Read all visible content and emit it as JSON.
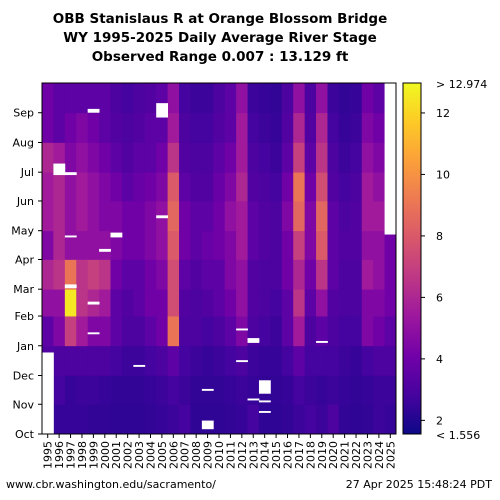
{
  "title_lines": [
    "OBB Stanislaus R at Orange Blossom Bridge",
    "WY 1995-2025 Daily Average River Stage",
    "Observed Range 0.007 : 13.129 ft"
  ],
  "footer": {
    "source": "www.cbr.washington.edu/sacramento/",
    "timestamp": "27 Apr 2025 15:48:24 PDT"
  },
  "colors": {
    "palette": [
      "#0d0887",
      "#46039f",
      "#7201a8",
      "#9c179e",
      "#bd3786",
      "#d8576b",
      "#ed7953",
      "#fb9f3a",
      "#fdca26",
      "#f0f921"
    ],
    "missing": "#ffffff"
  },
  "chart_data": {
    "type": "heatmap",
    "x": [
      "1995",
      "1996",
      "1997",
      "1998",
      "1999",
      "2000",
      "2001",
      "2002",
      "2003",
      "2004",
      "2005",
      "2006",
      "2007",
      "2008",
      "2009",
      "2010",
      "2011",
      "2012",
      "2013",
      "2014",
      "2015",
      "2016",
      "2017",
      "2018",
      "2019",
      "2020",
      "2021",
      "2022",
      "2023",
      "2024",
      "2025"
    ],
    "y": [
      "Oct",
      "Nov",
      "Dec",
      "Jan",
      "Feb",
      "Mar",
      "Apr",
      "May",
      "Jun",
      "Jul",
      "Aug",
      "Sep"
    ],
    "colorbar": {
      "ticks": [
        2,
        4,
        6,
        8,
        10,
        12
      ],
      "top_label": "> 12.974",
      "bottom_label": "< 1.556",
      "range": [
        1.556,
        12.974
      ]
    },
    "values": [
      [
        2.8,
        3.0,
        3.2,
        3.5,
        5.0,
        6.0,
        4.5,
        5.5,
        5.5,
        6.0,
        4.0,
        4.0
      ],
      [
        2.5,
        2.8,
        3.0,
        4.5,
        5.0,
        6.5,
        6.0,
        6.0,
        6.0,
        5.5,
        3.5,
        3.5
      ],
      [
        2.5,
        2.5,
        3.0,
        7.0,
        12.5,
        9.0,
        5.0,
        5.0,
        5.0,
        4.5,
        4.0,
        3.5
      ],
      [
        2.5,
        2.6,
        3.0,
        5.5,
        6.5,
        6.5,
        5.0,
        5.5,
        5.5,
        5.0,
        4.5,
        3.5
      ],
      [
        2.4,
        2.6,
        3.0,
        4.5,
        6.0,
        7.0,
        5.0,
        5.0,
        5.0,
        4.5,
        4.0,
        3.5
      ],
      [
        2.4,
        2.5,
        3.0,
        4.5,
        5.5,
        6.5,
        5.0,
        4.5,
        4.5,
        4.0,
        3.5,
        3.5
      ],
      [
        2.3,
        2.4,
        2.8,
        3.5,
        3.5,
        4.0,
        4.5,
        4.5,
        4.0,
        3.5,
        3.2,
        3.0
      ],
      [
        2.3,
        2.4,
        2.6,
        3.0,
        3.2,
        3.5,
        4.0,
        4.0,
        3.5,
        3.2,
        3.0,
        2.8
      ],
      [
        2.3,
        2.4,
        2.6,
        3.0,
        3.5,
        3.5,
        4.0,
        4.0,
        3.8,
        3.5,
        3.2,
        3.0
      ],
      [
        2.4,
        2.5,
        2.8,
        3.5,
        4.0,
        4.0,
        4.5,
        4.5,
        4.0,
        3.5,
        3.5,
        3.2
      ],
      [
        2.5,
        2.6,
        3.0,
        4.0,
        4.0,
        4.5,
        5.0,
        5.0,
        4.5,
        4.0,
        3.5,
        3.5
      ],
      [
        2.6,
        2.8,
        3.5,
        9.0,
        7.5,
        7.5,
        8.0,
        8.5,
        8.0,
        6.5,
        5.5,
        5.0
      ],
      [
        2.8,
        2.6,
        2.8,
        3.0,
        3.2,
        3.5,
        4.0,
        4.0,
        3.5,
        3.2,
        3.0,
        2.8
      ],
      [
        2.3,
        2.4,
        2.6,
        3.0,
        3.0,
        3.2,
        3.5,
        3.5,
        3.2,
        3.0,
        2.8,
        2.6
      ],
      [
        2.3,
        2.4,
        2.5,
        2.8,
        3.2,
        3.5,
        3.8,
        3.5,
        3.2,
        3.0,
        2.8,
        2.6
      ],
      [
        2.3,
        2.4,
        2.6,
        3.0,
        3.5,
        3.5,
        4.0,
        4.0,
        3.8,
        3.5,
        3.2,
        3.0
      ],
      [
        2.4,
        2.5,
        2.8,
        3.5,
        4.0,
        4.5,
        4.5,
        5.0,
        4.5,
        4.0,
        3.5,
        3.5
      ],
      [
        2.5,
        2.6,
        3.0,
        4.5,
        5.0,
        5.0,
        5.5,
        5.5,
        6.0,
        5.5,
        5.5,
        5.0
      ],
      [
        2.8,
        2.5,
        2.6,
        3.0,
        3.2,
        3.2,
        3.5,
        3.5,
        3.2,
        3.0,
        2.8,
        2.6
      ],
      [
        2.3,
        2.4,
        2.5,
        2.8,
        3.0,
        3.0,
        3.2,
        3.2,
        3.0,
        2.8,
        2.6,
        2.5
      ],
      [
        2.3,
        2.4,
        2.5,
        2.6,
        2.8,
        3.0,
        3.0,
        3.0,
        2.8,
        2.6,
        2.5,
        2.4
      ],
      [
        2.4,
        2.5,
        2.8,
        3.5,
        3.5,
        4.0,
        4.0,
        4.5,
        4.0,
        3.5,
        3.2,
        3.0
      ],
      [
        2.6,
        2.8,
        3.5,
        5.5,
        6.5,
        6.0,
        7.0,
        8.5,
        9.0,
        7.0,
        6.0,
        5.0
      ],
      [
        2.8,
        2.6,
        2.8,
        3.0,
        3.5,
        4.0,
        4.5,
        4.5,
        4.0,
        3.5,
        3.2,
        3.0
      ],
      [
        2.6,
        2.5,
        2.8,
        3.5,
        5.0,
        6.5,
        8.0,
        8.5,
        7.5,
        6.5,
        6.0,
        5.0
      ],
      [
        3.0,
        2.6,
        2.8,
        3.0,
        3.2,
        3.5,
        3.5,
        3.5,
        3.2,
        3.0,
        2.8,
        2.6
      ],
      [
        2.4,
        2.5,
        2.6,
        2.8,
        3.0,
        3.0,
        3.2,
        3.0,
        2.8,
        2.6,
        2.5,
        2.4
      ],
      [
        2.3,
        2.4,
        2.5,
        2.8,
        3.0,
        3.0,
        3.2,
        3.2,
        3.0,
        2.8,
        2.6,
        2.5
      ],
      [
        2.4,
        2.5,
        2.8,
        4.5,
        4.5,
        5.5,
        5.0,
        5.5,
        5.5,
        5.0,
        4.5,
        4.0
      ],
      [
        2.6,
        2.6,
        3.0,
        4.0,
        4.5,
        5.0,
        5.0,
        5.5,
        5.0,
        4.5,
        4.0,
        3.5
      ],
      [
        2.5,
        2.6,
        3.0,
        3.5,
        4.0,
        4.0,
        4.0,
        null,
        null,
        null,
        null,
        null
      ]
    ],
    "missing_periods": [
      {
        "year": "1995",
        "from_day": 0,
        "to_day": 85
      },
      {
        "year": "1996",
        "from_day": 270,
        "to_day": 282
      },
      {
        "year": "1997",
        "from_day": 152,
        "to_day": 156
      },
      {
        "year": "1997",
        "from_day": 205,
        "to_day": 207
      },
      {
        "year": "1997",
        "from_day": 270,
        "to_day": 273
      },
      {
        "year": "1999",
        "from_day": 104,
        "to_day": 106
      },
      {
        "year": "1999",
        "from_day": 335,
        "to_day": 339
      },
      {
        "year": "1999",
        "from_day": 135,
        "to_day": 138
      },
      {
        "year": "2000",
        "from_day": 190,
        "to_day": 193
      },
      {
        "year": "2001",
        "from_day": 205,
        "to_day": 210
      },
      {
        "year": "2003",
        "from_day": 70,
        "to_day": 72
      },
      {
        "year": "2005",
        "from_day": 225,
        "to_day": 228
      },
      {
        "year": "2005",
        "from_day": 330,
        "to_day": 345
      },
      {
        "year": "2009",
        "from_day": 5,
        "to_day": 14
      },
      {
        "year": "2009",
        "from_day": 45,
        "to_day": 47
      },
      {
        "year": "2012",
        "from_day": 75,
        "to_day": 77
      },
      {
        "year": "2012",
        "from_day": 108,
        "to_day": 110
      },
      {
        "year": "2013",
        "from_day": 35,
        "to_day": 37
      },
      {
        "year": "2013",
        "from_day": 95,
        "to_day": 100
      },
      {
        "year": "2014",
        "from_day": 42,
        "to_day": 56
      },
      {
        "year": "2014",
        "from_day": 22,
        "to_day": 24
      },
      {
        "year": "2014",
        "from_day": 33,
        "to_day": 35
      },
      {
        "year": "2019",
        "from_day": 95,
        "to_day": 97
      },
      {
        "year": "2025",
        "from_day": 208,
        "to_day": 366
      }
    ]
  }
}
